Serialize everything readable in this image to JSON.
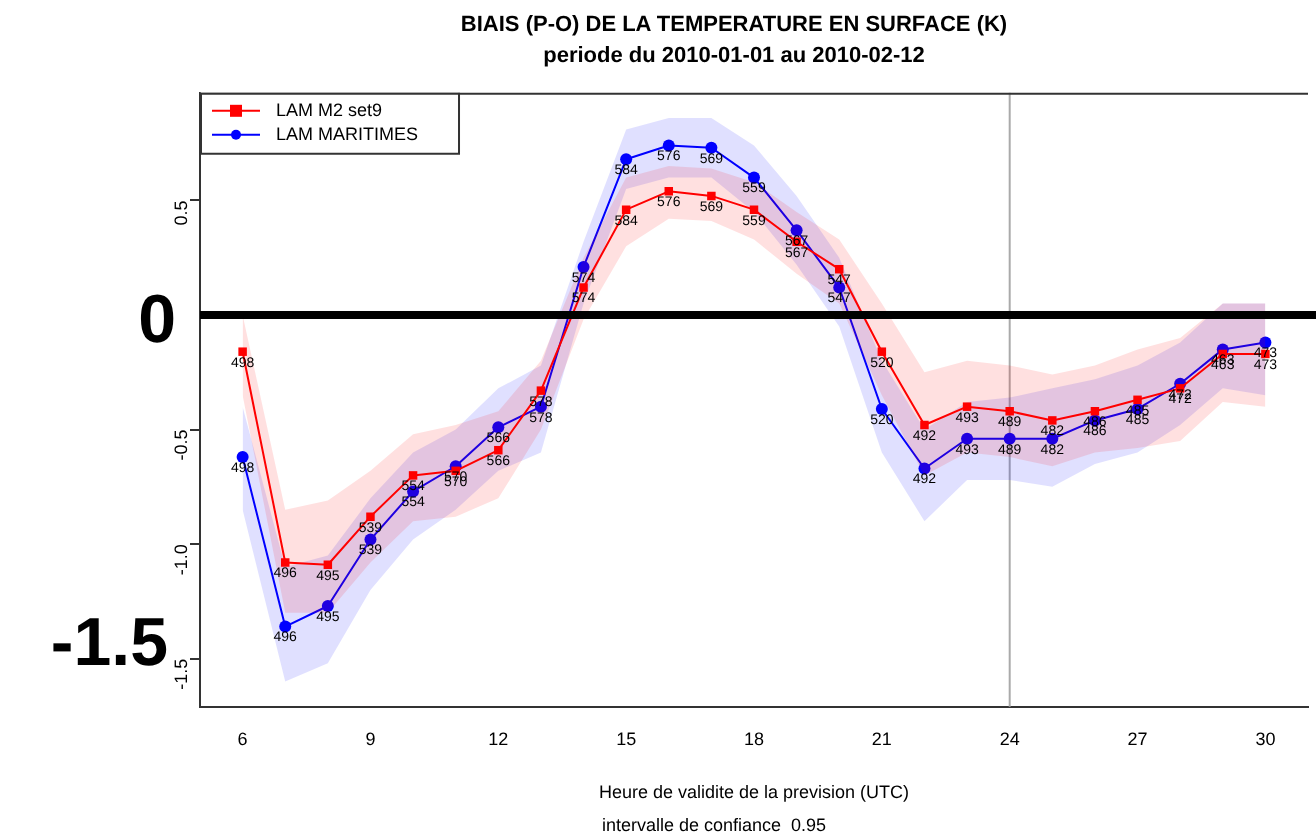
{
  "chart_data": {
    "type": "line",
    "title": "BIAIS (P-O) DE LA TEMPERATURE EN SURFACE (K)",
    "subtitle": "periode du 2010-01-01 au 2010-02-12",
    "xlabel": "Heure de validite de la prevision (UTC)",
    "annotations": [
      "intervalle de confiance  0.95",
      "-1.5",
      {
        "text": "498",
        "x": 6,
        "y": -0.16
      },
      {
        "text": "496",
        "x": 7,
        "y": -1.08
      },
      {
        "text": "495",
        "x": 8,
        "y": -1.09
      },
      {
        "text": "539",
        "x": 9,
        "y": -0.88
      },
      {
        "text": "554",
        "x": 10,
        "y": -0.7
      },
      {
        "text": "570",
        "x": 11,
        "y": -0.68
      },
      {
        "text": "566",
        "x": 12,
        "y": -0.59
      },
      {
        "text": "578",
        "x": 13,
        "y": -0.33
      },
      {
        "text": "574",
        "x": 14,
        "y": 0.12
      },
      {
        "text": "584",
        "x": 15,
        "y": 0.46
      },
      {
        "text": "576",
        "x": 16,
        "y": 0.54
      },
      {
        "text": "569",
        "x": 17,
        "y": 0.52
      },
      {
        "text": "559",
        "x": 18,
        "y": 0.46
      },
      {
        "text": "567",
        "x": 19,
        "y": 0.32
      },
      {
        "text": "547",
        "x": 20,
        "y": 0.2
      },
      {
        "text": "520",
        "x": 21,
        "y": -0.16
      },
      {
        "text": "492",
        "x": 22,
        "y": -0.48
      },
      {
        "text": "493",
        "x": 23,
        "y": -0.4
      },
      {
        "text": "489",
        "x": 24,
        "y": -0.42
      },
      {
        "text": "482",
        "x": 25,
        "y": -0.46
      },
      {
        "text": "486",
        "x": 26,
        "y": -0.42
      },
      {
        "text": "485",
        "x": 27,
        "y": -0.37
      },
      {
        "text": "472",
        "x": 28,
        "y": -0.32
      },
      {
        "text": "463",
        "x": 29,
        "y": -0.17
      },
      {
        "text": "473",
        "x": 30,
        "y": -0.17
      },
      {
        "text": "498",
        "x": 6,
        "y": -0.62
      },
      {
        "text": "496",
        "x": 7,
        "y": -1.36
      },
      {
        "text": "495",
        "x": 8,
        "y": -1.27
      },
      {
        "text": "539",
        "x": 9,
        "y": -0.98
      },
      {
        "text": "554",
        "x": 10,
        "y": -0.77
      },
      {
        "text": "570",
        "x": 11,
        "y": -0.66
      },
      {
        "text": "566",
        "x": 12,
        "y": -0.49
      },
      {
        "text": "578",
        "x": 13,
        "y": -0.4
      },
      {
        "text": "574",
        "x": 14,
        "y": 0.21
      },
      {
        "text": "584",
        "x": 15,
        "y": 0.68
      },
      {
        "text": "576",
        "x": 16,
        "y": 0.74
      },
      {
        "text": "569",
        "x": 17,
        "y": 0.73
      },
      {
        "text": "559",
        "x": 18,
        "y": 0.6
      },
      {
        "text": "567",
        "x": 19,
        "y": 0.37
      },
      {
        "text": "547",
        "x": 20,
        "y": 0.12
      },
      {
        "text": "520",
        "x": 21,
        "y": -0.41
      },
      {
        "text": "492",
        "x": 22,
        "y": -0.67
      },
      {
        "text": "493",
        "x": 23,
        "y": -0.54
      },
      {
        "text": "489",
        "x": 24,
        "y": -0.54
      },
      {
        "text": "482",
        "x": 25,
        "y": -0.54
      },
      {
        "text": "486",
        "x": 26,
        "y": -0.46
      },
      {
        "text": "485",
        "x": 27,
        "y": -0.41
      },
      {
        "text": "472",
        "x": 28,
        "y": -0.3
      },
      {
        "text": "463",
        "x": 29,
        "y": -0.15
      },
      {
        "text": "473",
        "x": 30,
        "y": -0.12
      }
    ],
    "x": [
      6,
      7,
      8,
      9,
      10,
      11,
      12,
      13,
      14,
      15,
      16,
      17,
      18,
      19,
      20,
      21,
      22,
      23,
      24,
      25,
      26,
      27,
      28,
      29,
      30
    ],
    "series": [
      {
        "name": "LAM M2 set9",
        "color": "#ff0000",
        "marker": "square",
        "values": [
          -0.16,
          -1.08,
          -1.09,
          -0.88,
          -0.7,
          -0.68,
          -0.59,
          -0.33,
          0.12,
          0.46,
          0.54,
          0.52,
          0.46,
          0.32,
          0.2,
          -0.16,
          -0.48,
          -0.4,
          -0.42,
          -0.46,
          -0.42,
          -0.37,
          -0.32,
          -0.17,
          -0.17
        ],
        "lower": [
          -0.35,
          -1.3,
          -1.3,
          -1.08,
          -0.9,
          -0.88,
          -0.8,
          -0.5,
          -0.02,
          0.3,
          0.42,
          0.41,
          0.33,
          0.18,
          0.05,
          -0.35,
          -0.7,
          -0.6,
          -0.62,
          -0.66,
          -0.6,
          -0.58,
          -0.55,
          -0.38,
          -0.4
        ],
        "upper": [
          0.0,
          -0.85,
          -0.81,
          -0.68,
          -0.52,
          -0.48,
          -0.42,
          -0.2,
          0.25,
          0.6,
          0.65,
          0.64,
          0.58,
          0.45,
          0.33,
          0.05,
          -0.25,
          -0.2,
          -0.22,
          -0.26,
          -0.22,
          -0.15,
          -0.1,
          0.05,
          0.05
        ]
      },
      {
        "name": "LAM MARITIMES",
        "color": "#0000ff",
        "marker": "circle",
        "values": [
          -0.62,
          -1.36,
          -1.27,
          -0.98,
          -0.77,
          -0.66,
          -0.49,
          -0.4,
          0.21,
          0.68,
          0.74,
          0.73,
          0.6,
          0.37,
          0.12,
          -0.41,
          -0.67,
          -0.54,
          -0.54,
          -0.54,
          -0.46,
          -0.41,
          -0.3,
          -0.15,
          -0.12
        ],
        "lower": [
          -0.85,
          -1.6,
          -1.52,
          -1.2,
          -0.98,
          -0.85,
          -0.68,
          -0.6,
          0.05,
          0.55,
          0.6,
          0.6,
          0.45,
          0.22,
          -0.05,
          -0.6,
          -0.9,
          -0.72,
          -0.72,
          -0.75,
          -0.65,
          -0.6,
          -0.48,
          -0.32,
          -0.35
        ],
        "upper": [
          -0.4,
          -1.1,
          -1.05,
          -0.8,
          -0.6,
          -0.5,
          -0.32,
          -0.22,
          0.32,
          0.81,
          0.86,
          0.86,
          0.74,
          0.52,
          0.25,
          -0.2,
          -0.5,
          -0.38,
          -0.36,
          -0.32,
          -0.28,
          -0.22,
          -0.12,
          0.05,
          0.05
        ]
      }
    ],
    "xlim": [
      5,
      31
    ],
    "xticks": [
      6,
      9,
      12,
      15,
      18,
      21,
      24,
      27,
      30
    ],
    "ylim": [
      -1.71,
      0.97
    ],
    "yticks": [
      -1.5,
      {
        "value": -1,
        "label": "-1.0"
      },
      -0.5,
      0.5
    ],
    "ref_lines": [
      {
        "axis": "y",
        "value": 0,
        "label": "0",
        "color": "#000000"
      },
      {
        "axis": "x",
        "value": 24,
        "color": "#aaaaaa"
      }
    ],
    "grid": false,
    "legend": "top left",
    "line_style": "solid"
  }
}
